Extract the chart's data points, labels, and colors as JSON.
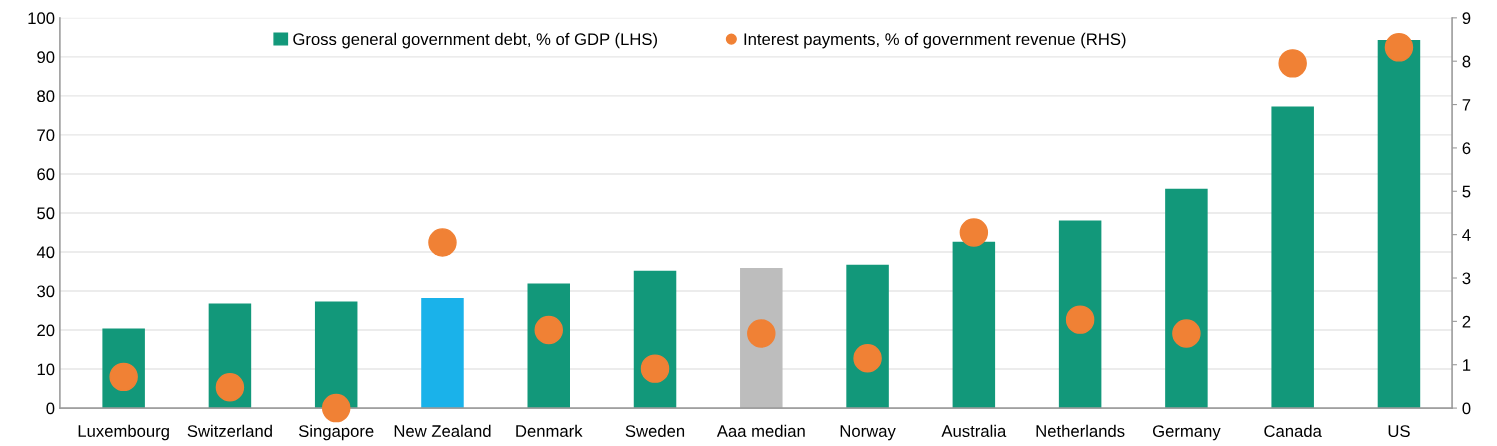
{
  "chart_data": {
    "type": "bar",
    "categories": [
      "Luxembourg",
      "Switzerland",
      "Singapore",
      "New Zealand",
      "Denmark",
      "Sweden",
      "Aaa median",
      "Norway",
      "Australia",
      "Netherlands",
      "Germany",
      "Canada",
      "US"
    ],
    "series": [
      {
        "name": "Gross general government debt, % of GDP (LHS)",
        "color": "#12987a",
        "colors": [
          "#12987a",
          "#12987a",
          "#12987a",
          "#1ab2ea",
          "#12987a",
          "#12987a",
          "#bdbdbd",
          "#12987a",
          "#12987a",
          "#12987a",
          "#12987a",
          "#12987a",
          "#12987a"
        ],
        "values": [
          20.4,
          26.8,
          27.3,
          28.2,
          31.9,
          35.2,
          35.9,
          36.7,
          42.6,
          48.1,
          56.2,
          77.3,
          94.3
        ]
      },
      {
        "name": "Interest payments, % of government revenue (RHS)",
        "type": "scatter",
        "axis": "y2",
        "color": "#f08135",
        "values": [
          0.72,
          0.48,
          0.0,
          3.82,
          1.8,
          0.91,
          1.72,
          1.15,
          4.05,
          2.04,
          1.72,
          7.95,
          8.32
        ]
      }
    ],
    "ylim": [
      0,
      100
    ],
    "yticks": [
      0,
      10,
      20,
      30,
      40,
      50,
      60,
      70,
      80,
      90,
      100
    ],
    "y2lim": [
      0,
      9
    ],
    "y2ticks": [
      0,
      1,
      2,
      3,
      4,
      5,
      6,
      7,
      8,
      9
    ],
    "grid": "y",
    "legend": "top",
    "marker": "circle"
  }
}
